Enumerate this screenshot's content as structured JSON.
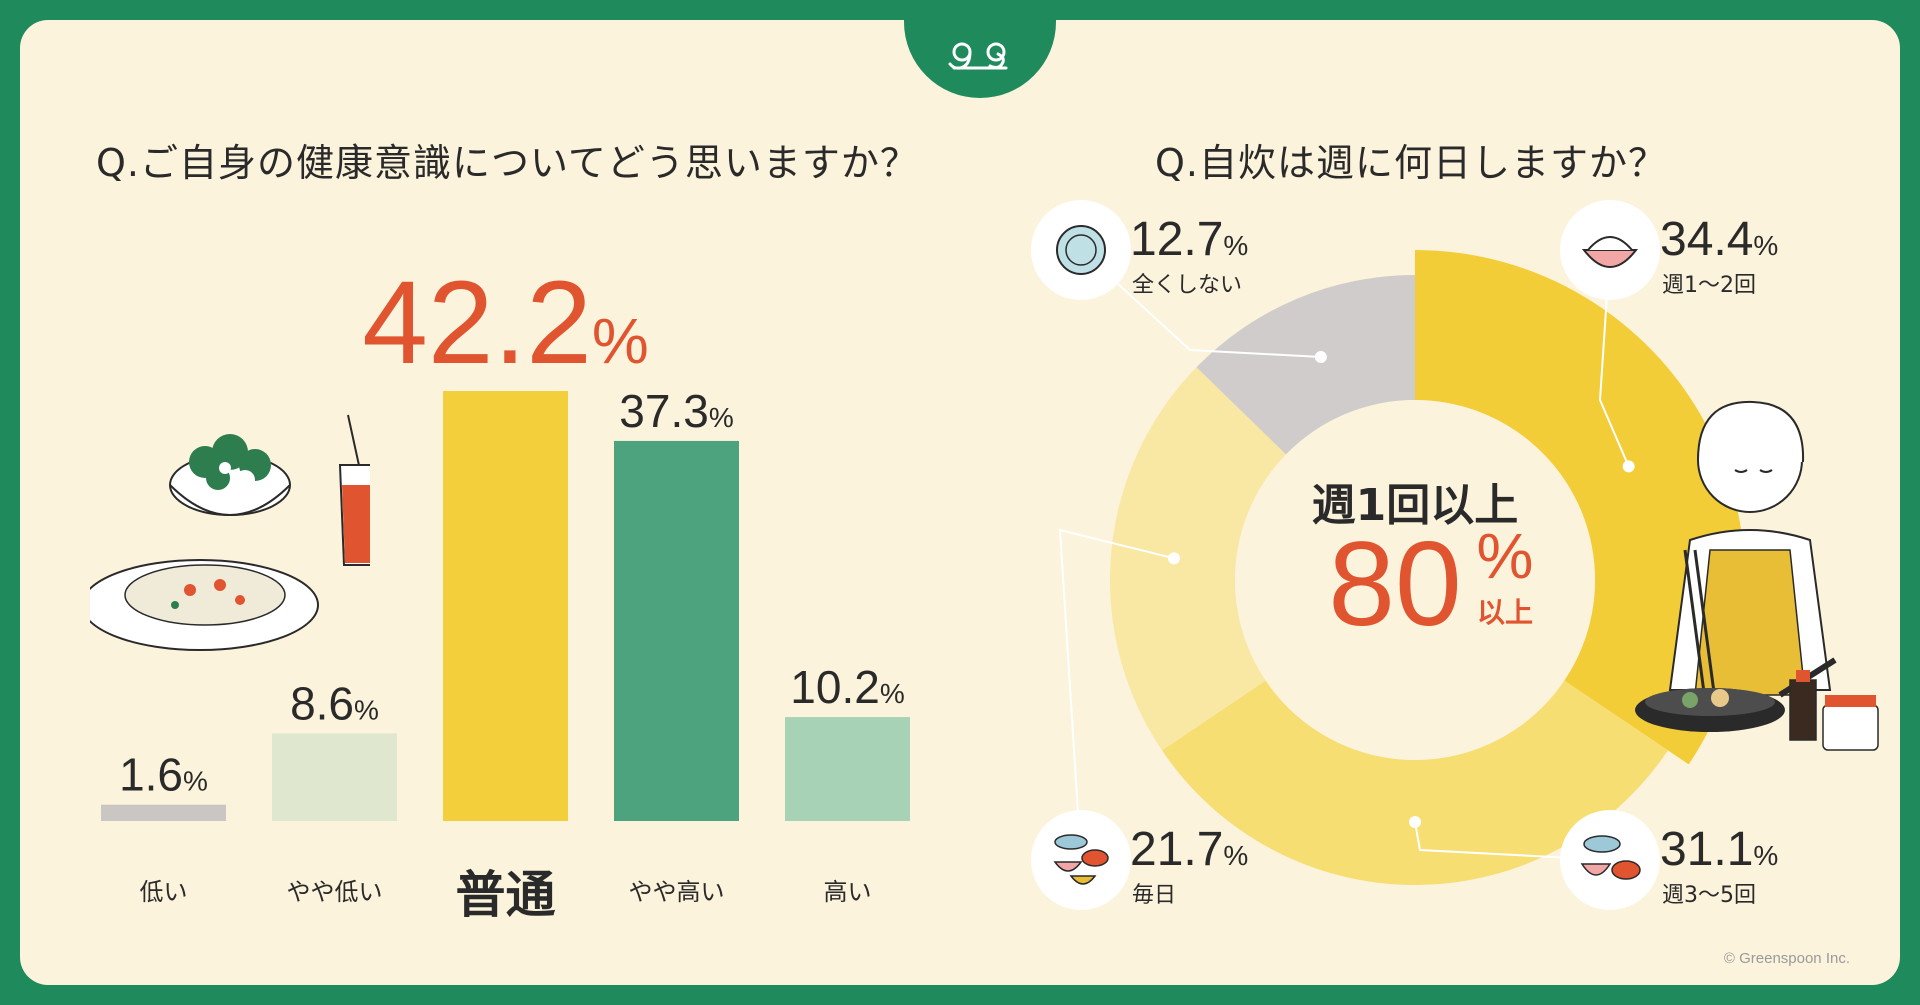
{
  "logo": "gs-logo",
  "copyright": "© Greenspoon Inc.",
  "chart_data": [
    {
      "type": "bar",
      "title": "Q.ご自身の健康意識についてどう思いますか？",
      "categories": [
        "低い",
        "やや低い",
        "普通",
        "やや高い",
        "高い"
      ],
      "values": [
        1.6,
        8.6,
        42.2,
        37.3,
        10.2
      ],
      "value_labels": [
        "1.6",
        "8.6",
        "42.2",
        "37.3",
        "10.2"
      ],
      "unit": "%",
      "colors": [
        "#c9c6c3",
        "#dfe8cf",
        "#f3cf3c",
        "#4da37d",
        "#a7d2b6"
      ],
      "highlight_color": "#e0542f",
      "ylim": [
        0,
        42.2
      ]
    },
    {
      "type": "pie",
      "title": "Q.自炊は週に何日しますか？",
      "categories": [
        "全くしない",
        "週1〜2回",
        "週3〜5回",
        "毎日"
      ],
      "values": [
        12.7,
        34.4,
        31.1,
        21.7
      ],
      "value_labels": [
        "12.7",
        "34.4",
        "31.1",
        "21.7"
      ],
      "unit": "%",
      "colors": [
        "#cfcccb",
        "#f3cd37",
        "#f6de73",
        "#f8e8a3"
      ],
      "icons": [
        "plate-icon",
        "rice-bowl-icon",
        "fish-meat-icon",
        "meal-set-icon"
      ],
      "center": {
        "line1": "週1回以上",
        "value": "80",
        "sign": "%",
        "suffix": "以上"
      }
    }
  ]
}
